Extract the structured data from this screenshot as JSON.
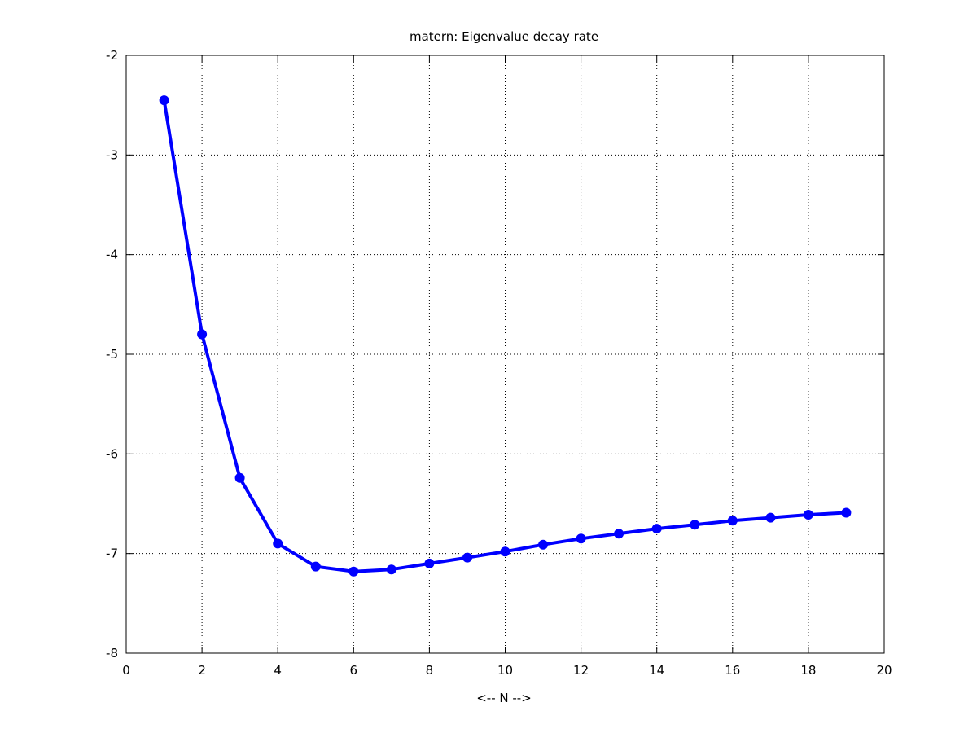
{
  "chart_data": {
    "type": "line",
    "title": "matern: Eigenvalue decay rate",
    "xlabel": "<-- N -->",
    "ylabel": "",
    "xlim": [
      0,
      20
    ],
    "ylim": [
      -8,
      -2
    ],
    "xticks": [
      0,
      2,
      4,
      6,
      8,
      10,
      12,
      14,
      16,
      18,
      20
    ],
    "yticks": [
      -8,
      -7,
      -6,
      -5,
      -4,
      -3,
      -2
    ],
    "xtick_labels": [
      "0",
      "2",
      "4",
      "6",
      "8",
      "10",
      "12",
      "14",
      "16",
      "18",
      "20"
    ],
    "ytick_labels": [
      "-8",
      "-7",
      "-6",
      "-5",
      "-4",
      "-3",
      "-2"
    ],
    "grid": true,
    "series": [
      {
        "color": "#0000ff",
        "marker": "circle",
        "x": [
          1,
          2,
          3,
          4,
          5,
          6,
          7,
          8,
          9,
          10,
          11,
          12,
          13,
          14,
          15,
          16,
          17,
          18,
          19
        ],
        "y": [
          -2.45,
          -4.8,
          -6.24,
          -6.9,
          -7.13,
          -7.18,
          -7.16,
          -7.1,
          -7.04,
          -6.98,
          -6.91,
          -6.85,
          -6.8,
          -6.75,
          -6.71,
          -6.67,
          -6.64,
          -6.61,
          -6.59
        ]
      }
    ]
  }
}
